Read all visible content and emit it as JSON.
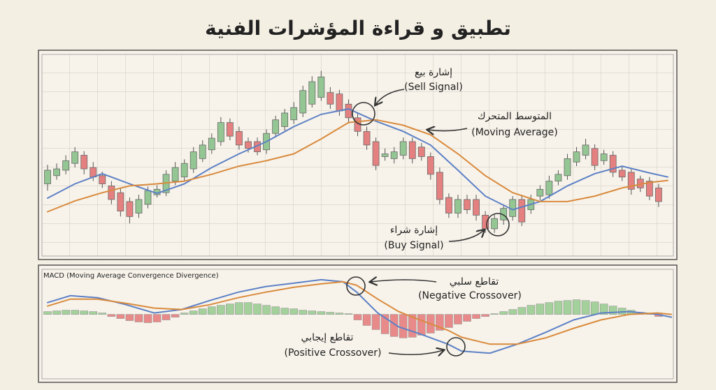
{
  "title": "تطبيق و قراءة المؤشرات الفنية",
  "chart_data": [
    {
      "type": "candlestick",
      "xlim": [
        -1,
        69
      ],
      "ylim": [
        0,
        296
      ],
      "up_color": "#93c693",
      "down_color": "#e58080",
      "open": [
        106,
        118,
        126,
        136,
        148,
        130,
        118,
        103,
        93,
        80,
        63,
        76,
        90,
        93,
        110,
        116,
        128,
        143,
        156,
        168,
        196,
        183,
        168,
        168,
        156,
        180,
        190,
        200,
        210,
        223,
        233,
        240,
        238,
        223,
        203,
        183,
        168,
        146,
        143,
        148,
        168,
        160,
        146,
        123,
        86,
        63,
        83,
        83,
        60,
        40,
        53,
        58,
        83,
        68,
        88,
        90,
        110,
        118,
        138,
        148,
        158,
        140,
        148,
        126,
        123,
        113,
        110,
        100
      ],
      "high": [
        134,
        136,
        148,
        160,
        154,
        138,
        124,
        110,
        100,
        86,
        90,
        102,
        104,
        126,
        138,
        142,
        160,
        170,
        180,
        204,
        202,
        190,
        174,
        174,
        186,
        206,
        216,
        226,
        250,
        264,
        272,
        248,
        244,
        230,
        210,
        190,
        174,
        158,
        160,
        174,
        174,
        166,
        152,
        130,
        92,
        90,
        90,
        90,
        66,
        62,
        76,
        88,
        90,
        90,
        104,
        118,
        126,
        150,
        160,
        172,
        164,
        156,
        154,
        132,
        128,
        118,
        116,
        106
      ],
      "low": [
        96,
        112,
        120,
        130,
        120,
        110,
        100,
        76,
        58,
        48,
        56,
        70,
        86,
        88,
        104,
        110,
        122,
        138,
        150,
        162,
        170,
        156,
        152,
        148,
        150,
        174,
        184,
        194,
        204,
        218,
        228,
        216,
        206,
        196,
        176,
        156,
        126,
        140,
        136,
        142,
        136,
        140,
        112,
        76,
        56,
        56,
        62,
        52,
        34,
        34,
        46,
        52,
        44,
        62,
        82,
        84,
        104,
        112,
        132,
        142,
        126,
        134,
        116,
        110,
        90,
        94,
        82,
        72
      ],
      "close": [
        126,
        128,
        140,
        153,
        128,
        116,
        106,
        83,
        66,
        58,
        83,
        96,
        98,
        120,
        130,
        136,
        153,
        163,
        173,
        196,
        176,
        163,
        158,
        153,
        180,
        200,
        210,
        218,
        243,
        256,
        263,
        223,
        213,
        203,
        183,
        163,
        133,
        150,
        153,
        168,
        143,
        146,
        120,
        83,
        63,
        83,
        68,
        60,
        40,
        55,
        70,
        83,
        50,
        83,
        98,
        110,
        120,
        143,
        153,
        163,
        133,
        150,
        123,
        116,
        98,
        100,
        88,
        80
      ],
      "lines": [
        {
          "color": "#5d80c6",
          "x": [
            0,
            3,
            6,
            9,
            12,
            15,
            18,
            21,
            24,
            27,
            30,
            33,
            36,
            39,
            42,
            45,
            48,
            51,
            54,
            57,
            60,
            63,
            66,
            68
          ],
          "values": [
            85,
            106,
            121,
            106,
            92,
            106,
            130,
            150,
            168,
            190,
            208,
            216,
            198,
            183,
            163,
            126,
            88,
            68,
            80,
            103,
            121,
            132,
            122,
            116
          ]
        },
        {
          "color": "#d98a3d",
          "x": [
            0,
            3,
            6,
            9,
            12,
            15,
            18,
            21,
            24,
            27,
            30,
            33,
            36,
            39,
            42,
            45,
            48,
            51,
            54,
            57,
            60,
            63,
            66,
            68
          ],
          "values": [
            65,
            81,
            93,
            103,
            106,
            110,
            120,
            132,
            140,
            150,
            172,
            196,
            200,
            192,
            178,
            150,
            118,
            93,
            80,
            80,
            88,
            100,
            108,
            111
          ]
        }
      ],
      "annotations": [
        "إشارة بيع",
        "(Sell Signal)",
        "المتوسط المتحرك",
        "(Moving Average)",
        "إشارة شراء",
        "(Buy Signal)"
      ]
    },
    {
      "type": "combo",
      "title": "MACD (Moving Average Convergence Divergence)",
      "xlim": [
        -1,
        69
      ],
      "ylim": [
        -93,
        64
      ],
      "positive_color": "#a3d09b",
      "negative_color": "#e88a8a",
      "histogram": [
        4,
        5,
        6,
        6,
        5,
        4,
        2,
        -3,
        -6,
        -9,
        -11,
        -12,
        -11,
        -8,
        -4,
        2,
        5,
        8,
        11,
        13,
        15,
        17,
        17,
        15,
        13,
        11,
        9,
        8,
        6,
        5,
        4,
        3,
        2,
        1,
        -8,
        -16,
        -22,
        -28,
        -32,
        -34,
        -33,
        -30,
        -27,
        -23,
        -19,
        -14,
        -10,
        -6,
        -3,
        1,
        4,
        7,
        10,
        13,
        15,
        17,
        19,
        20,
        21,
        20,
        18,
        15,
        12,
        9,
        6,
        3,
        1,
        -3
      ],
      "lines": [
        {
          "color": "#5d80c6",
          "x": [
            0,
            2.5,
            5.5,
            8.6,
            11.7,
            14.7,
            17.8,
            20.9,
            23.9,
            27,
            30,
            32.4,
            33.9,
            36.2,
            38.5,
            40.8,
            43.9,
            45.4,
            48.5,
            51.5,
            54.6,
            57.7,
            60.7,
            63.8,
            66.9,
            68.4
          ],
          "values": [
            17,
            27,
            24,
            14,
            2,
            7,
            20,
            32,
            40,
            45,
            50,
            47,
            32,
            2,
            -18,
            -28,
            -43,
            -53,
            -56,
            -43,
            -26,
            -8,
            2,
            4,
            0,
            -4
          ]
        },
        {
          "color": "#d98a3d",
          "x": [
            0,
            2.5,
            5.5,
            8.6,
            11.7,
            14.7,
            17.8,
            20.9,
            23.9,
            27,
            30,
            32.4,
            33.9,
            36.2,
            38.5,
            40.8,
            43.9,
            45.4,
            48.5,
            51.5,
            54.6,
            57.7,
            60.7,
            63.8,
            66.9,
            68.4
          ],
          "values": [
            12,
            22,
            22,
            16,
            9,
            7,
            14,
            24,
            32,
            39,
            44,
            47,
            42,
            22,
            4,
            -8,
            -23,
            -33,
            -43,
            -43,
            -34,
            -20,
            -8,
            0,
            2,
            0
          ]
        }
      ],
      "annotations": [
        "تقاطع سلبي",
        "(Negative Crossover)",
        "تقاطع إيجابي",
        "(Positive Crossover)"
      ]
    }
  ]
}
